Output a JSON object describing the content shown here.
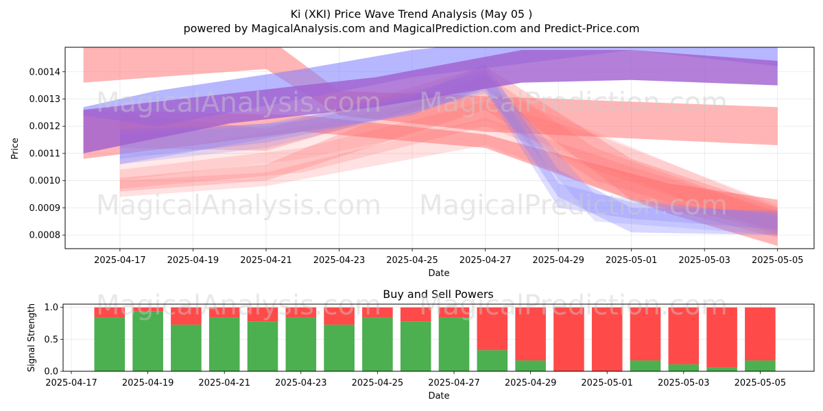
{
  "title_line1": "Ki (XKI) Price Wave Trend Analysis (May 05 )",
  "title_line2": "powered by MagicalAnalysis.com and MagicalPrediction.com and Predict-Price.com",
  "watermarks": [
    "MagicalAnalysis.com",
    "MagicalPrediction.com"
  ],
  "colors": {
    "red_band": "#ff6b6b",
    "blue_band": "#7b7bff",
    "purple_band": "#a05fd0",
    "buy": "#4caf50",
    "sell": "#ff4a4a"
  },
  "chart_data": [
    {
      "type": "area",
      "title": "",
      "xlabel": "Date",
      "ylabel": "Price",
      "x_range": [
        "2025-04-15T12:00",
        "2025-05-06T00:00"
      ],
      "ylim": [
        0.00075,
        0.00149
      ],
      "grid": true,
      "x_ticks": [
        "2025-04-17",
        "2025-04-19",
        "2025-04-21",
        "2025-04-23",
        "2025-04-25",
        "2025-04-27",
        "2025-04-29",
        "2025-05-01",
        "2025-05-03",
        "2025-05-05"
      ],
      "y_ticks": [
        "0.0008",
        "0.0009",
        "0.0010",
        "0.0011",
        "0.0012",
        "0.0013",
        "0.0014"
      ],
      "series": [
        {
          "color": "red",
          "opacity": 0.5,
          "points": [
            [
              "2025-04-16",
              0.00153,
              0.00136
            ],
            [
              "2025-04-21",
              0.00153,
              0.00141
            ],
            [
              "2025-04-23",
              0.00133,
              0.00124
            ],
            [
              "2025-04-27",
              0.00131,
              0.00118
            ],
            [
              "2025-05-05",
              0.00127,
              0.00113
            ]
          ]
        },
        {
          "color": "red",
          "opacity": 0.5,
          "points": [
            [
              "2025-04-16",
              0.00126,
              0.00108
            ],
            [
              "2025-04-22",
              0.00124,
              0.00118
            ],
            [
              "2025-04-27",
              0.00117,
              0.00112
            ],
            [
              "2025-05-02",
              0.00099,
              0.00088
            ],
            [
              "2025-05-05",
              0.00093,
              0.00076
            ]
          ]
        },
        {
          "color": "red",
          "opacity": 0.3,
          "points": [
            [
              "2025-04-17",
              0.00125,
              0.00112
            ],
            [
              "2025-04-21",
              0.00119,
              0.00111
            ],
            [
              "2025-04-27",
              0.00142,
              0.00134
            ],
            [
              "2025-05-01",
              0.00108,
              0.00093
            ],
            [
              "2025-05-05",
              0.0009,
              0.00079
            ]
          ]
        },
        {
          "color": "red",
          "opacity": 0.25,
          "points": [
            [
              "2025-04-17",
              0.00101,
              0.00096
            ],
            [
              "2025-04-21",
              0.00106,
              0.001
            ],
            [
              "2025-04-27",
              0.00139,
              0.00126
            ],
            [
              "2025-04-30",
              0.00112,
              0.001
            ],
            [
              "2025-05-05",
              0.00088,
              0.0008
            ]
          ]
        },
        {
          "color": "red",
          "opacity": 0.2,
          "points": [
            [
              "2025-04-17",
              0.00104,
              0.00097
            ],
            [
              "2025-04-22",
              0.00112,
              0.00103
            ],
            [
              "2025-04-27",
              0.00129,
              0.0012
            ],
            [
              "2025-04-30",
              0.00117,
              0.00104
            ],
            [
              "2025-05-05",
              0.00091,
              0.00081
            ]
          ]
        },
        {
          "color": "red",
          "opacity": 0.2,
          "points": [
            [
              "2025-04-17",
              0.001,
              0.00094
            ],
            [
              "2025-04-21",
              0.00103,
              0.00098
            ],
            [
              "2025-04-27",
              0.00123,
              0.00113
            ],
            [
              "2025-05-01",
              0.00105,
              0.00093
            ],
            [
              "2025-05-05",
              0.00089,
              0.00082
            ]
          ]
        },
        {
          "color": "red",
          "opacity": 0.15,
          "points": [
            [
              "2025-04-17",
              0.00109,
              0.001
            ],
            [
              "2025-04-22",
              0.0012,
              0.00108
            ],
            [
              "2025-04-27",
              0.00134,
              0.00122
            ],
            [
              "2025-04-30",
              0.00118,
              0.00106
            ],
            [
              "2025-05-05",
              0.0009,
              0.0008
            ]
          ]
        },
        {
          "color": "blue",
          "opacity": 0.55,
          "points": [
            [
              "2025-04-16",
              0.00127,
              0.00124
            ],
            [
              "2025-04-18",
              0.00133,
              0.0012
            ],
            [
              "2025-04-22",
              0.00141,
              0.0013
            ],
            [
              "2025-04-25",
              0.00148,
              0.00138
            ],
            [
              "2025-05-01",
              0.00156,
              0.00148
            ],
            [
              "2025-05-05",
              0.00151,
              0.00142
            ]
          ]
        },
        {
          "color": "blue",
          "opacity": 0.3,
          "points": [
            [
              "2025-04-17",
              0.00119,
              0.00106
            ],
            [
              "2025-04-20",
              0.0012,
              0.00113
            ],
            [
              "2025-04-22",
              0.00122,
              0.00118
            ],
            [
              "2025-04-25",
              0.00131,
              0.00124
            ],
            [
              "2025-04-27",
              0.00143,
              0.00134
            ],
            [
              "2025-04-29",
              0.00104,
              0.00094
            ],
            [
              "2025-05-01",
              0.0009,
              0.00081
            ],
            [
              "2025-05-05",
              0.00089,
              0.0008
            ]
          ]
        },
        {
          "color": "blue",
          "opacity": 0.25,
          "points": [
            [
              "2025-04-17",
              0.00118,
              0.00108
            ],
            [
              "2025-04-21",
              0.00121,
              0.00114
            ],
            [
              "2025-04-25",
              0.00132,
              0.00125
            ],
            [
              "2025-04-27",
              0.00141,
              0.00133
            ],
            [
              "2025-04-29",
              0.00099,
              0.0009
            ],
            [
              "2025-05-01",
              0.00092,
              0.00086
            ],
            [
              "2025-05-05",
              0.00088,
              0.00082
            ]
          ]
        },
        {
          "color": "blue",
          "opacity": 0.2,
          "points": [
            [
              "2025-04-17",
              0.00117,
              0.00106
            ],
            [
              "2025-04-21",
              0.0012,
              0.00112
            ],
            [
              "2025-04-25",
              0.00133,
              0.00125
            ],
            [
              "2025-04-27",
              0.0014,
              0.00132
            ],
            [
              "2025-04-30",
              0.00095,
              0.00085
            ],
            [
              "2025-05-05",
              0.00087,
              0.0008
            ]
          ]
        },
        {
          "color": "purple",
          "opacity": 0.8,
          "points": [
            [
              "2025-04-16",
              0.00126,
              0.0011
            ],
            [
              "2025-04-20",
              0.00132,
              0.00121
            ],
            [
              "2025-04-24",
              0.00138,
              0.00127
            ],
            [
              "2025-04-28",
              0.00148,
              0.00136
            ],
            [
              "2025-05-01",
              0.00148,
              0.00137
            ],
            [
              "2025-05-05",
              0.00144,
              0.00135
            ]
          ]
        }
      ]
    },
    {
      "type": "bar",
      "title": "Buy and Sell Powers",
      "xlabel": "Date",
      "ylabel": "Signal Strength",
      "ylim": [
        0,
        1.05
      ],
      "grid": true,
      "x_ticks": [
        "2025-04-17",
        "2025-04-19",
        "2025-04-21",
        "2025-04-23",
        "2025-04-25",
        "2025-04-27",
        "2025-04-29",
        "2025-05-01",
        "2025-05-03",
        "2025-05-05"
      ],
      "y_ticks": [
        "0.0",
        "0.5",
        "1.0"
      ],
      "categories": [
        "2025-04-18",
        "2025-04-19",
        "2025-04-20",
        "2025-04-21",
        "2025-04-22",
        "2025-04-23",
        "2025-04-24",
        "2025-04-25",
        "2025-04-26",
        "2025-04-27",
        "2025-04-28",
        "2025-04-29",
        "2025-04-30",
        "2025-05-01",
        "2025-05-02",
        "2025-05-03",
        "2025-05-04",
        "2025-05-05"
      ],
      "series": [
        {
          "name": "Buy",
          "values": [
            0.84,
            0.94,
            0.73,
            0.84,
            0.78,
            0.84,
            0.73,
            0.84,
            0.78,
            0.84,
            0.33,
            0.17,
            0.0,
            0.0,
            0.17,
            0.11,
            0.06,
            0.17
          ]
        },
        {
          "name": "Sell",
          "values": [
            0.16,
            0.06,
            0.27,
            0.16,
            0.22,
            0.16,
            0.27,
            0.16,
            0.22,
            0.16,
            0.67,
            0.83,
            1.0,
            1.0,
            0.83,
            0.89,
            0.94,
            0.83
          ]
        }
      ]
    }
  ]
}
